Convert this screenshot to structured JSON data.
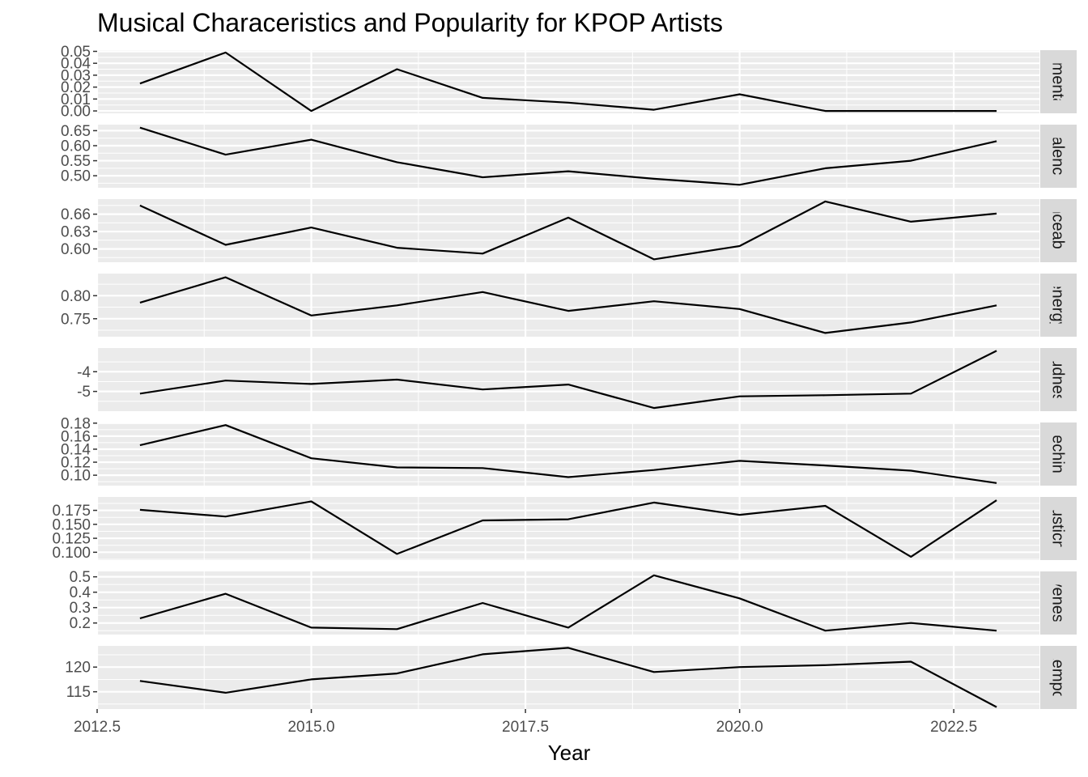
{
  "chart_data": {
    "type": "line",
    "title": "Musical Characeristics and Popularity for KPOP Artists",
    "xlabel": "Year",
    "ylabel": "",
    "x": [
      2013,
      2014,
      2015,
      2016,
      2017,
      2018,
      2019,
      2020,
      2021,
      2022,
      2023
    ],
    "xlim": [
      2012.5,
      2023.5
    ],
    "x_ticks": [
      2012.5,
      2015.0,
      2017.5,
      2020.0,
      2022.5
    ],
    "x_tick_labels": [
      "2012.5",
      "2015.0",
      "2017.5",
      "2020.0",
      "2022.5"
    ],
    "grid": true,
    "facet_layout": "stacked rows with strip labels on the right",
    "colors": {
      "line": "#000000",
      "panel": "#ebebeb",
      "grid": "#ffffff",
      "strip": "#d9d9d9"
    },
    "series": [
      {
        "name": "instrumentalness",
        "strip_label": "umental",
        "values": [
          0.023,
          0.049,
          0.0,
          0.035,
          0.011,
          0.007,
          0.001,
          0.014,
          0.0,
          0.0,
          0.0
        ],
        "ylim": [
          -0.002,
          0.051
        ],
        "y_ticks": [
          0.0,
          0.01,
          0.02,
          0.03,
          0.04,
          0.05
        ],
        "y_tick_labels": [
          "0.00",
          "0.01",
          "0.02",
          "0.03",
          "0.04",
          "0.05"
        ]
      },
      {
        "name": "valence",
        "strip_label": "valence",
        "values": [
          0.66,
          0.57,
          0.62,
          0.545,
          0.495,
          0.515,
          0.49,
          0.47,
          0.525,
          0.55,
          0.615
        ],
        "ylim": [
          0.46,
          0.67
        ],
        "y_ticks": [
          0.5,
          0.55,
          0.6,
          0.65
        ],
        "y_tick_labels": [
          "0.50",
          "0.55",
          "0.60",
          "0.65"
        ]
      },
      {
        "name": "danceability",
        "strip_label": "nceabil",
        "values": [
          0.675,
          0.607,
          0.637,
          0.602,
          0.592,
          0.654,
          0.582,
          0.605,
          0.682,
          0.647,
          0.661
        ],
        "ylim": [
          0.577,
          0.686
        ],
        "y_ticks": [
          0.6,
          0.63,
          0.66
        ],
        "y_tick_labels": [
          "0.60",
          "0.63",
          "0.66"
        ]
      },
      {
        "name": "energy",
        "strip_label": "energy",
        "values": [
          0.785,
          0.84,
          0.757,
          0.779,
          0.808,
          0.767,
          0.788,
          0.771,
          0.719,
          0.742,
          0.779
        ],
        "ylim": [
          0.711,
          0.848
        ],
        "y_ticks": [
          0.75,
          0.8
        ],
        "y_tick_labels": [
          "0.75",
          "0.80"
        ]
      },
      {
        "name": "loudness",
        "strip_label": "oudness",
        "values": [
          -5.11,
          -4.45,
          -4.62,
          -4.4,
          -4.9,
          -4.65,
          -5.84,
          -5.25,
          -5.19,
          -5.11,
          -2.94
        ],
        "ylim": [
          -6.0,
          -2.8
        ],
        "y_ticks": [
          -5,
          -4
        ],
        "y_tick_labels": [
          "-5",
          "-4"
        ]
      },
      {
        "name": "speechiness",
        "strip_label": "eechine",
        "values": [
          0.146,
          0.177,
          0.126,
          0.112,
          0.111,
          0.097,
          0.108,
          0.122,
          0.115,
          0.107,
          0.088
        ],
        "ylim": [
          0.084,
          0.181
        ],
        "y_ticks": [
          0.1,
          0.12,
          0.14,
          0.16,
          0.18
        ],
        "y_tick_labels": [
          "0.10",
          "0.12",
          "0.14",
          "0.16",
          "0.18"
        ]
      },
      {
        "name": "acousticness",
        "strip_label": "ousticne",
        "values": [
          0.176,
          0.164,
          0.191,
          0.097,
          0.157,
          0.159,
          0.189,
          0.167,
          0.183,
          0.092,
          0.193
        ],
        "ylim": [
          0.086,
          0.199
        ],
        "y_ticks": [
          0.1,
          0.125,
          0.15,
          0.175
        ],
        "y_tick_labels": [
          "0.100",
          "0.125",
          "0.150",
          "0.175"
        ]
      },
      {
        "name": "liveness",
        "strip_label": "iveness",
        "values": [
          0.23,
          0.39,
          0.17,
          0.16,
          0.33,
          0.17,
          0.51,
          0.36,
          0.15,
          0.2,
          0.15
        ],
        "ylim": [
          0.125,
          0.535
        ],
        "y_ticks": [
          0.2,
          0.3,
          0.4,
          0.5
        ],
        "y_tick_labels": [
          "0.2",
          "0.3",
          "0.4",
          "0.5"
        ]
      },
      {
        "name": "tempo",
        "strip_label": "tempo",
        "values": [
          117.2,
          114.8,
          117.5,
          118.7,
          122.6,
          123.9,
          119.0,
          120.0,
          120.4,
          121.1,
          111.9
        ],
        "ylim": [
          111.5,
          124.3
        ],
        "y_ticks": [
          115,
          120
        ],
        "y_tick_labels": [
          "115",
          "120"
        ]
      }
    ]
  }
}
